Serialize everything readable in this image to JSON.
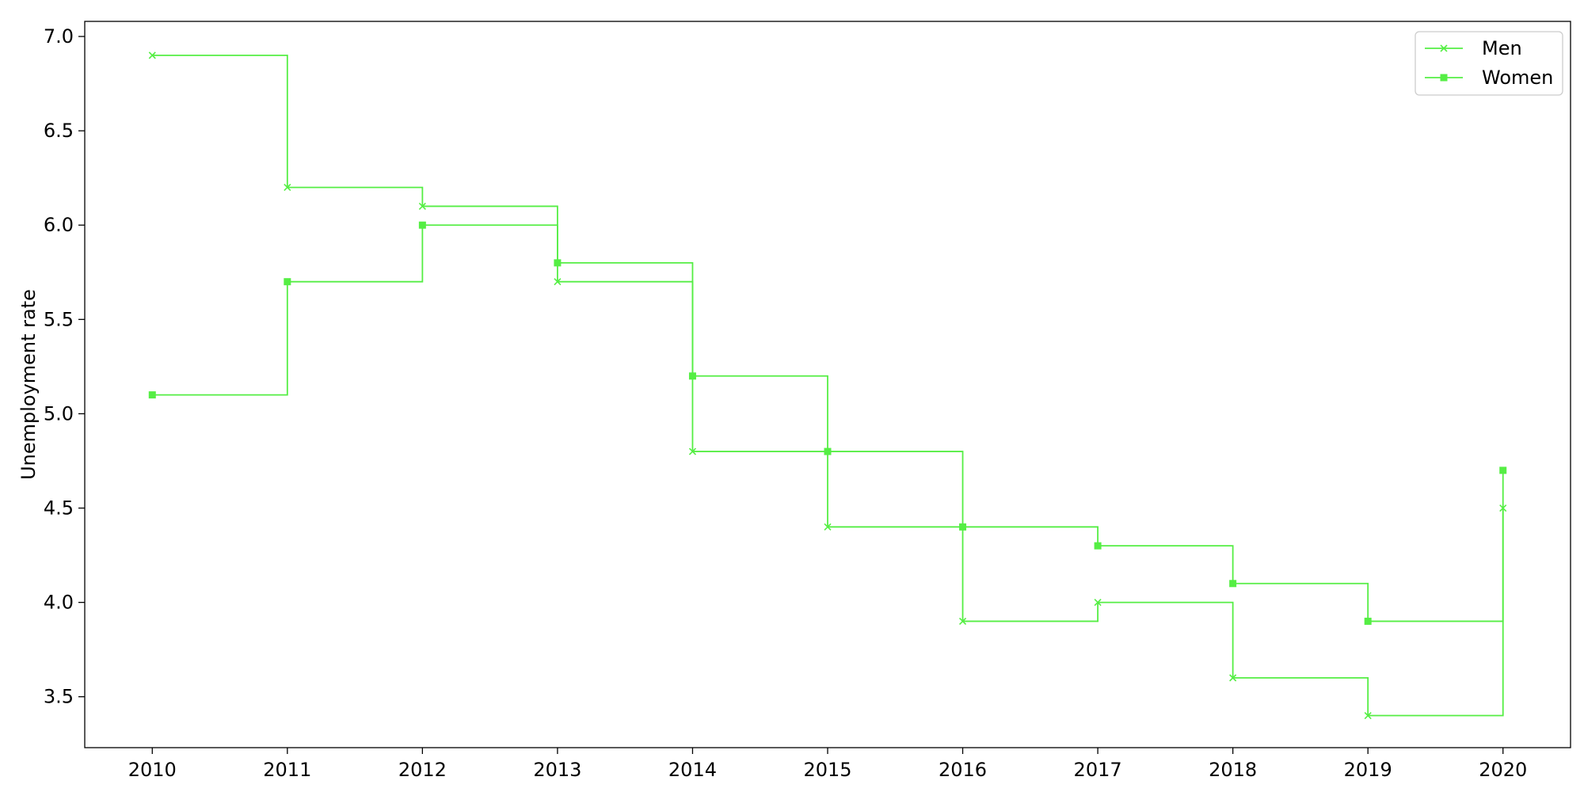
{
  "chart_data": {
    "type": "line",
    "step": "post",
    "title": "",
    "xlabel": "",
    "ylabel": "Unemployment rate",
    "x": [
      2010,
      2011,
      2012,
      2013,
      2014,
      2015,
      2016,
      2017,
      2018,
      2019,
      2020
    ],
    "xticks": [
      "2010",
      "2011",
      "2012",
      "2013",
      "2014",
      "2015",
      "2016",
      "2017",
      "2018",
      "2019",
      "2020"
    ],
    "yticks": [
      "3.5",
      "4.0",
      "4.5",
      "5.0",
      "5.5",
      "6.0",
      "6.5",
      "7.0"
    ],
    "xlim": [
      2009.5,
      2020.5
    ],
    "ylim": [
      3.23,
      7.08
    ],
    "grid": false,
    "legend_position": "top-right",
    "series": [
      {
        "name": "Men",
        "marker": "x",
        "color": "#55ee44",
        "values": [
          6.9,
          6.2,
          6.1,
          5.7,
          4.8,
          4.4,
          3.9,
          4.0,
          3.6,
          3.4,
          4.5
        ]
      },
      {
        "name": "Women",
        "marker": "square",
        "color": "#55ee44",
        "values": [
          5.1,
          5.7,
          6.0,
          5.8,
          5.2,
          4.8,
          4.4,
          4.3,
          4.1,
          3.9,
          4.7
        ]
      }
    ]
  }
}
